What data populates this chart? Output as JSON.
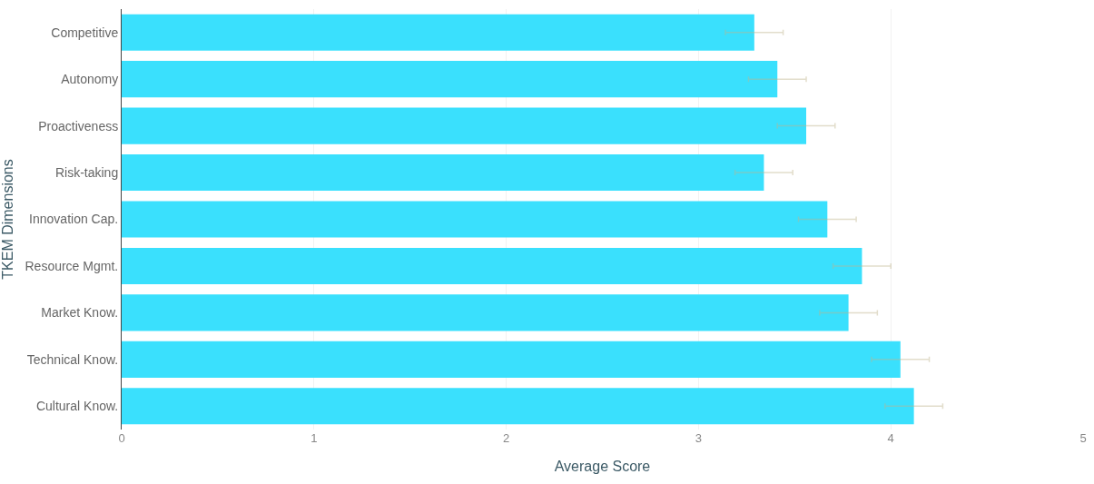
{
  "chart_data": {
    "type": "bar",
    "orientation": "horizontal",
    "xlabel": "Average Score",
    "ylabel": "TKEM Dimensions",
    "categories": [
      "Competitive",
      "Autonomy",
      "Proactiveness",
      "Risk-taking",
      "Innovation Cap.",
      "Resource Mgmt.",
      "Market Know.",
      "Technical Know.",
      "Cultural Know."
    ],
    "values": [
      3.29,
      3.41,
      3.56,
      3.34,
      3.67,
      3.85,
      3.78,
      4.05,
      4.12
    ],
    "errors": [
      0.15,
      0.15,
      0.15,
      0.15,
      0.15,
      0.15,
      0.15,
      0.15,
      0.15
    ],
    "color": "#3ae0fd",
    "xlim": [
      0,
      5
    ],
    "xticks": [
      0,
      1,
      2,
      3,
      4,
      5
    ],
    "grid": "x"
  }
}
